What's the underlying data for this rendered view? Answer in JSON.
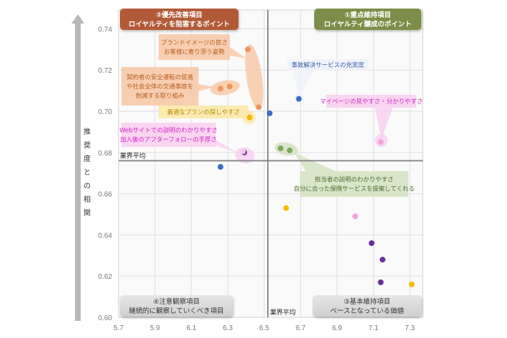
{
  "chart_data": {
    "type": "scatter",
    "title": "",
    "xlabel": "",
    "ylabel": "推奨度との相関",
    "xlim": [
      5.7,
      7.35
    ],
    "ylim": [
      0.6,
      0.745
    ],
    "x_ticks": [
      "5.7",
      "5.9",
      "6.1",
      "6.3",
      "6.5",
      "6.7",
      "6.9",
      "7.1",
      "7.3"
    ],
    "y_ticks": [
      "0.60",
      "0.62",
      "0.64",
      "0.66",
      "0.68",
      "0.70",
      "0.72",
      "0.74"
    ],
    "x_tick_values": [
      5.7,
      5.9,
      6.1,
      6.3,
      6.5,
      6.7,
      6.9,
      7.1,
      7.3
    ],
    "y_tick_values": [
      0.6,
      0.62,
      0.64,
      0.66,
      0.68,
      0.7,
      0.72,
      0.74
    ],
    "grid": true,
    "industry_average": {
      "x": 6.52,
      "y": 0.676,
      "label": "業界平均"
    },
    "quadrants": [
      {
        "id": "q2",
        "position": "top-left",
        "line1": "②優先改善項目",
        "line2": "ロイヤルティを阻害するポイント",
        "color": "#b25a38"
      },
      {
        "id": "q1",
        "position": "top-right",
        "line1": "①重点維持項目",
        "line2": "ロイヤルティ醸成のポイント",
        "color": "#7b8e46"
      },
      {
        "id": "q4",
        "position": "bottom-left",
        "line1": "④注意観察項目",
        "line2": "継続的に観察していくべき項目",
        "color": "#d9d9d9"
      },
      {
        "id": "q3",
        "position": "bottom-right",
        "line1": "③基本維持項目",
        "line2": "ベースとなっている価値",
        "color": "#d9d9d9"
      }
    ],
    "series": [
      {
        "name": "orange",
        "color": "#f0955a",
        "points": [
          [
            6.41,
            0.73
          ],
          [
            6.26,
            0.711
          ],
          [
            6.31,
            0.712
          ],
          [
            6.47,
            0.702
          ]
        ]
      },
      {
        "name": "yellow",
        "color": "#f5b800",
        "points": [
          [
            6.42,
            0.697
          ],
          [
            6.62,
            0.653
          ],
          [
            7.31,
            0.616
          ]
        ]
      },
      {
        "name": "blue",
        "color": "#3a6cc8",
        "points": [
          [
            6.53,
            0.699
          ],
          [
            6.69,
            0.706
          ],
          [
            6.26,
            0.673
          ]
        ]
      },
      {
        "name": "green",
        "color": "#7aab5a",
        "points": [
          [
            6.59,
            0.682
          ],
          [
            6.64,
            0.681
          ]
        ]
      },
      {
        "name": "magenta",
        "color": "#f2a4d8",
        "points": [
          [
            7.14,
            0.685
          ],
          [
            7.0,
            0.649
          ]
        ]
      },
      {
        "name": "violet",
        "color": "#6a2e9a",
        "points": [
          [
            6.39,
            0.68
          ],
          [
            7.09,
            0.636
          ],
          [
            7.15,
            0.628
          ],
          [
            7.14,
            0.617
          ]
        ]
      }
    ],
    "annotations": [
      {
        "text": [
          "ブランドイメージの良さ",
          "お客様に寄り添う姿勢"
        ],
        "text_color": "#b85d1e",
        "bg": "#f7c9a8",
        "group": "orange-top"
      },
      {
        "text": [
          "契約者の安全運転の促進",
          "や社会全体の交通事故を",
          "削減する取り組み"
        ],
        "text_color": "#b85d1e",
        "bg": "#f7c9a8",
        "group": "orange-left"
      },
      {
        "text": [
          "最適なプランの探しやすさ"
        ],
        "text_color": "#b88a00",
        "bg": "#fbe9a8",
        "group": "yellow"
      },
      {
        "text": [
          "Webサイトでの説明のわかりやすさ",
          "加入後のアフターフォローの手厚さ"
        ],
        "text_color": "#d622c8",
        "bg": "#f8d0ee",
        "group": "magenta-left"
      },
      {
        "text": [
          "事故解決サービスの充実度"
        ],
        "text_color": "#3b5fa8",
        "bg": "#eef2f9",
        "group": "blue"
      },
      {
        "text": [
          "マイページの見やすさ・分かりやすさ"
        ],
        "text_color": "#d622c8",
        "bg": "#f8d0ee",
        "group": "magenta-right"
      },
      {
        "text": [
          "担当者の説明のわかりやすさ",
          "自分に合った保険サービスを提案してくれる"
        ],
        "text_color": "#4f6d30",
        "bg": "#d4e2c3",
        "group": "green"
      }
    ]
  }
}
